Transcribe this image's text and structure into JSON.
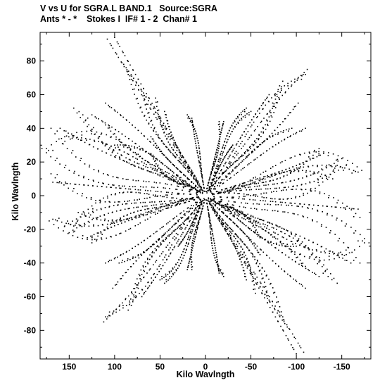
{
  "header": {
    "line1": "V vs U for SGRA.L BAND.1   Source:SGRA",
    "line2": "Ants * - *    Stokes I  IF# 1 - 2  Chan# 1"
  },
  "chart_data": {
    "type": "scatter",
    "title": "V vs U for SGRA.L BAND.1   Source:SGRA",
    "subtitle": "Ants * - *    Stokes I  IF# 1 - 2  Chan# 1",
    "xlabel": "Kilo Wavlngth",
    "ylabel": "Kilo Wavlngth",
    "xlim": [
      182,
      -182
    ],
    "ylim": [
      -97,
      97
    ],
    "x_reversed": true,
    "grid": false,
    "xticks": [
      150,
      100,
      50,
      0,
      -50,
      -100,
      -150
    ],
    "xtick_labels": [
      "150",
      "100",
      "50",
      "0",
      "-50",
      "-100",
      "-150"
    ],
    "yticks": [
      80,
      60,
      40,
      20,
      0,
      -20,
      -40,
      -60,
      -80
    ],
    "ytick_labels": [
      "80",
      "60",
      "40",
      "20",
      "0",
      "-20",
      "-40",
      "-60",
      "-80"
    ],
    "track_endpoints": [
      {
        "u": 100,
        "v": 94
      },
      {
        "u": 90,
        "v": 78
      },
      {
        "u": 70,
        "v": 62
      },
      {
        "u": 45,
        "v": 50
      },
      {
        "u": 15,
        "v": 46
      },
      {
        "u": -20,
        "v": 44
      },
      {
        "u": -50,
        "v": 50
      },
      {
        "u": -80,
        "v": 63
      },
      {
        "u": -102,
        "v": 55
      },
      {
        "u": -112,
        "v": 75
      },
      {
        "u": -95,
        "v": 40
      },
      {
        "u": -125,
        "v": 28
      },
      {
        "u": -150,
        "v": 22
      },
      {
        "u": -172,
        "v": 15
      },
      {
        "u": -168,
        "v": -8
      },
      {
        "u": -180,
        "v": -28
      },
      {
        "u": -155,
        "v": -35
      },
      {
        "u": -135,
        "v": -48
      },
      {
        "u": -110,
        "v": -55
      },
      {
        "u": -108,
        "v": -93
      },
      {
        "u": -85,
        "v": -72
      },
      {
        "u": -55,
        "v": -58
      },
      {
        "u": -20,
        "v": -48
      },
      {
        "u": 15,
        "v": -44
      },
      {
        "u": 45,
        "v": -52
      },
      {
        "u": 70,
        "v": -60
      },
      {
        "u": 85,
        "v": -68
      },
      {
        "u": 110,
        "v": -72
      },
      {
        "u": 110,
        "v": -40
      },
      {
        "u": 130,
        "v": -25
      },
      {
        "u": 155,
        "v": -18
      },
      {
        "u": 168,
        "v": -14
      },
      {
        "u": 170,
        "v": 13
      },
      {
        "u": 175,
        "v": 28
      },
      {
        "u": 160,
        "v": 40
      },
      {
        "u": 145,
        "v": 52
      },
      {
        "u": 125,
        "v": 48
      },
      {
        "u": 110,
        "v": 42
      },
      {
        "u": 170,
        "v": 40
      },
      {
        "u": 100,
        "v": 30
      },
      {
        "u": 60,
        "v": 35
      },
      {
        "u": -30,
        "v": 30
      },
      {
        "u": -60,
        "v": -25
      },
      {
        "u": -145,
        "v": 18
      },
      {
        "u": 140,
        "v": -10
      }
    ],
    "points_per_track": 30,
    "note_symmetry": "each sampled (u,v) has its conjugate (-u,-v) plotted"
  }
}
